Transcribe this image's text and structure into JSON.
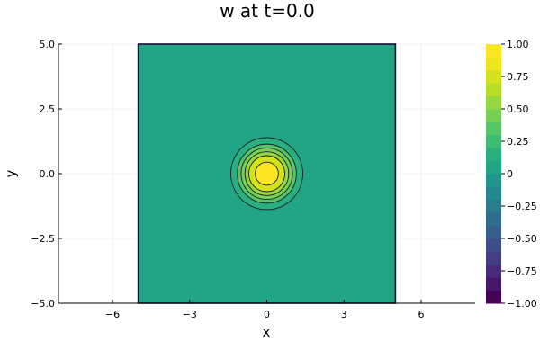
{
  "chart_data": {
    "type": "heatmap",
    "subtype": "filled-contour",
    "title": "w at t=0.0",
    "xlabel": "x",
    "ylabel": "y",
    "xlim": [
      -8.1,
      8.1
    ],
    "ylim": [
      -5.0,
      5.0
    ],
    "grid": true,
    "colormap": "viridis",
    "field": {
      "domain": {
        "x": [
          -5,
          5
        ],
        "y": [
          -5,
          5
        ]
      },
      "background_value": 0.0,
      "peak_value": 1.0,
      "peak_center": [
        0,
        0
      ],
      "contour_radii": [
        0.45,
        0.7,
        0.85,
        1.0,
        1.15,
        1.4
      ]
    },
    "x_ticks": [
      {
        "value": -6,
        "label": "−6"
      },
      {
        "value": -3,
        "label": "−3"
      },
      {
        "value": 0,
        "label": "0"
      },
      {
        "value": 3,
        "label": "3"
      },
      {
        "value": 6,
        "label": "6"
      }
    ],
    "y_ticks": [
      {
        "value": 5.0,
        "label": "5.0"
      },
      {
        "value": 2.5,
        "label": "2.5"
      },
      {
        "value": 0.0,
        "label": "0.0"
      },
      {
        "value": -2.5,
        "label": "−2.5"
      },
      {
        "value": -5.0,
        "label": "−5.0"
      }
    ],
    "colorbar": {
      "range": [
        -1.0,
        1.0
      ],
      "levels": 20,
      "colors": [
        "#440154",
        "#481769",
        "#472a7a",
        "#433d84",
        "#3d4e8a",
        "#355e8d",
        "#2e6d8e",
        "#297b8e",
        "#23898e",
        "#1f958b",
        "#21a585",
        "#2ab07f",
        "#3ebc74",
        "#56c667",
        "#75d054",
        "#95d840",
        "#b8de29",
        "#d3e21b",
        "#f0e51c",
        "#fde725"
      ],
      "ticks": [
        {
          "value": 1.0,
          "label": "1.00"
        },
        {
          "value": 0.75,
          "label": "0.75"
        },
        {
          "value": 0.5,
          "label": "0.50"
        },
        {
          "value": 0.25,
          "label": "0.25"
        },
        {
          "value": 0.0,
          "label": "0"
        },
        {
          "value": -0.25,
          "label": "−0.25"
        },
        {
          "value": -0.5,
          "label": "−0.50"
        },
        {
          "value": -0.75,
          "label": "−0.75"
        },
        {
          "value": -1.0,
          "label": "−1.00"
        }
      ]
    }
  }
}
